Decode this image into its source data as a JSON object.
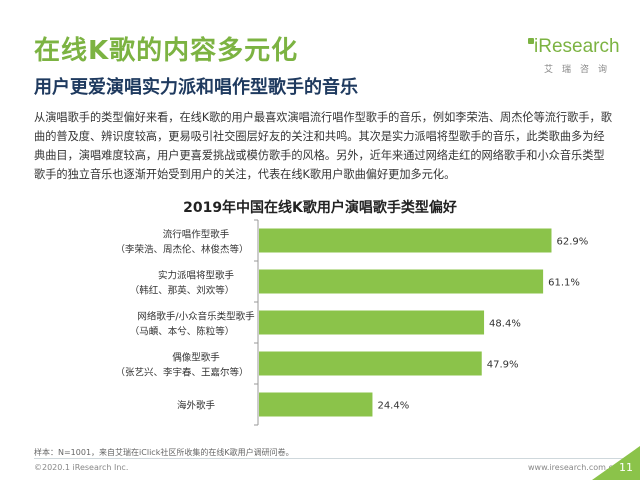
{
  "header": {
    "title": "在线K歌的内容多元化",
    "subtitle": "用户更爱演唱实力派和唱作型歌手的音乐"
  },
  "logo": {
    "name": "iResearch",
    "sub": "艾瑞咨询"
  },
  "body": {
    "paragraph": "从演唱歌手的类型偏好来看，在线K歌的用户最喜欢演唱流行唱作型歌手的音乐，例如李荣浩、周杰伦等流行歌手，歌曲的普及度、辨识度较高，更易吸引社交圈层好友的关注和共鸣。其次是实力派唱将型歌手的音乐，此类歌曲多为经典曲目，演唱难度较高，用户更喜爱挑战或模仿歌手的风格。另外，近年来通过网络走红的网络歌手和小众音乐类型歌手的独立音乐也逐渐开始受到用户的关注，代表在线K歌用户歌曲偏好更加多元化。"
  },
  "chart_data": {
    "type": "bar",
    "orientation": "horizontal",
    "title": "2019年中国在线K歌用户演唱歌手类型偏好",
    "categories": [
      {
        "label": "流行唱作型歌手",
        "sublabel": "（李荣浩、周杰伦、林俊杰等）"
      },
      {
        "label": "实力派唱将型歌手",
        "sublabel": "（韩红、那英、刘欢等）"
      },
      {
        "label": "网络歌手/小众音乐类型歌手",
        "sublabel": "（马頔、本兮、陈粒等）"
      },
      {
        "label": "偶像型歌手",
        "sublabel": "（张艺兴、李宇春、王嘉尔等）"
      },
      {
        "label": "海外歌手",
        "sublabel": ""
      }
    ],
    "values": [
      62.9,
      61.1,
      48.4,
      47.9,
      24.4
    ],
    "value_labels": [
      "62.9%",
      "61.1%",
      "48.4%",
      "47.9%",
      "24.4%"
    ],
    "xlim": [
      0,
      100
    ],
    "bar_color": "#8bc34a",
    "grid": false
  },
  "footer": {
    "note": "样本：N=1001，来自艾瑞在iClick社区所收集的在线K歌用户调研问卷。",
    "copyright": "©2020.1 iResearch Inc.",
    "website": "www.iresearch.com.cn",
    "page": "11"
  },
  "colors": {
    "accent": "#7cb342",
    "subtitle": "#1f3a5f"
  }
}
